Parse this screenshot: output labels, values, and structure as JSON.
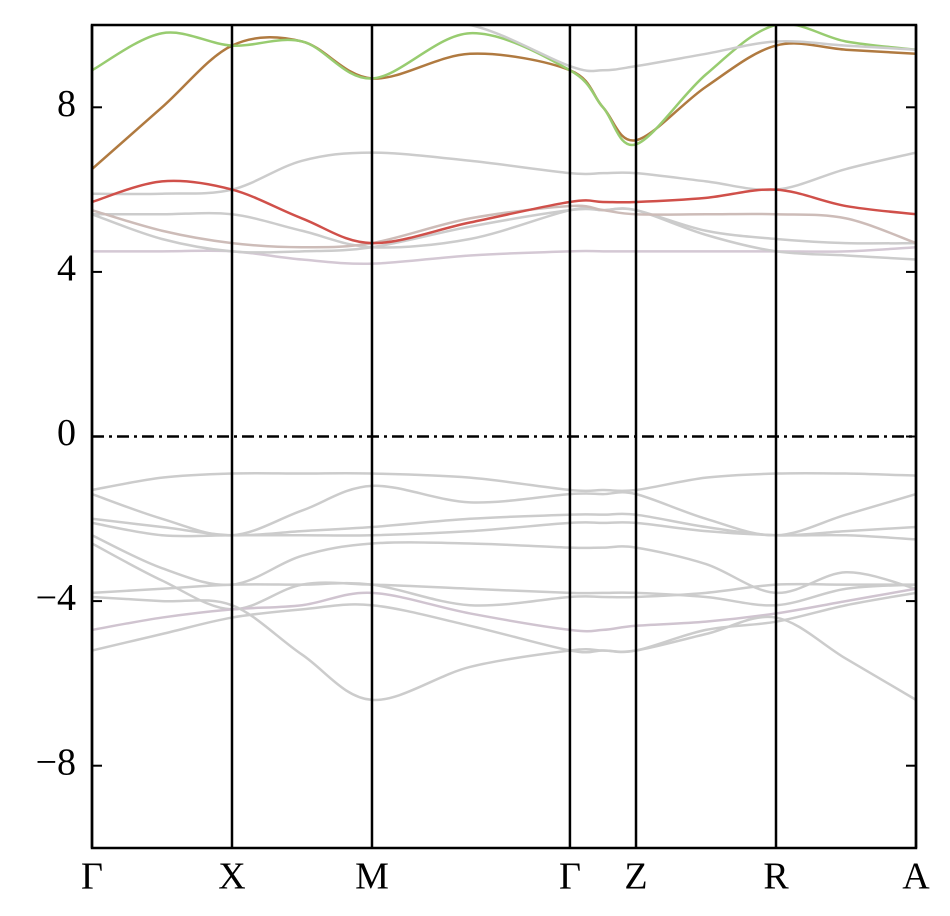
{
  "chart_data": {
    "type": "line",
    "smooth": true,
    "x": [
      0,
      0.5,
      1,
      1.5,
      2,
      2.7,
      3.414,
      3.65,
      3.886,
      4.386,
      4.886,
      5.386,
      5.886
    ],
    "xlim": [
      0,
      5.886
    ],
    "xticks": [
      {
        "value": 0,
        "label": "Γ"
      },
      {
        "value": 1,
        "label": "X"
      },
      {
        "value": 2,
        "label": "M"
      },
      {
        "value": 3.414,
        "label": "Γ"
      },
      {
        "value": 3.886,
        "label": "Z"
      },
      {
        "value": 4.886,
        "label": "R"
      },
      {
        "value": 5.886,
        "label": "A"
      }
    ],
    "ylim": [
      -10,
      10
    ],
    "yticks": [
      {
        "value": -8,
        "label": "−8"
      },
      {
        "value": -4,
        "label": "−4"
      },
      0,
      4,
      8
    ],
    "grid": "x",
    "reference_line": 0,
    "series": [
      {
        "color": "#cccccc",
        "values": [
          -1.3,
          -1.0,
          -0.9,
          -0.9,
          -0.9,
          -1.0,
          -1.3,
          -1.3,
          -1.3,
          -1.0,
          -0.9,
          -0.9,
          -0.95
        ]
      },
      {
        "color": "#cccccc",
        "values": [
          -1.4,
          -2.0,
          -2.4,
          -1.8,
          -1.2,
          -1.6,
          -1.4,
          -1.4,
          -1.4,
          -2.0,
          -2.4,
          -1.9,
          -1.4
        ]
      },
      {
        "color": "#cccccc",
        "values": [
          -2.0,
          -2.2,
          -2.4,
          -2.3,
          -2.2,
          -2.0,
          -1.9,
          -1.9,
          -1.9,
          -2.2,
          -2.4,
          -2.3,
          -2.2
        ]
      },
      {
        "color": "#cccccc",
        "values": [
          -2.1,
          -2.4,
          -2.4,
          -2.4,
          -2.4,
          -2.3,
          -2.1,
          -2.1,
          -2.1,
          -2.3,
          -2.4,
          -2.4,
          -2.5
        ]
      },
      {
        "color": "#cccccc",
        "values": [
          -2.4,
          -3.2,
          -3.6,
          -2.9,
          -2.6,
          -2.6,
          -2.7,
          -2.7,
          -2.7,
          -3.1,
          -3.8,
          -3.3,
          -3.7
        ]
      },
      {
        "color": "#cccccc",
        "values": [
          -2.6,
          -3.5,
          -4.2,
          -3.6,
          -3.6,
          -3.7,
          -3.8,
          -3.8,
          -3.8,
          -3.9,
          -4.1,
          -3.7,
          -3.6
        ]
      },
      {
        "color": "#cccccc",
        "values": [
          -3.8,
          -3.7,
          -3.6,
          -3.6,
          -3.6,
          -4.1,
          -3.9,
          -3.9,
          -3.9,
          -3.8,
          -3.6,
          -3.6,
          -3.6
        ]
      },
      {
        "color": "#d0c4d0",
        "values": [
          -4.7,
          -4.4,
          -4.2,
          -4.1,
          -3.8,
          -4.3,
          -4.7,
          -4.7,
          -4.6,
          -4.5,
          -4.3,
          -4.0,
          -3.7
        ]
      },
      {
        "color": "#cccccc",
        "values": [
          -3.9,
          -4.0,
          -4.1,
          -5.3,
          -6.4,
          -5.6,
          -5.2,
          -5.2,
          -5.2,
          -4.8,
          -4.4,
          -5.4,
          -6.4
        ]
      },
      {
        "color": "#cccccc",
        "values": [
          -5.2,
          -4.8,
          -4.4,
          -4.2,
          -4.1,
          -4.6,
          -5.2,
          -5.2,
          -5.2,
          -4.7,
          -4.5,
          -4.1,
          -3.8
        ]
      },
      {
        "color": "#d4c8d4",
        "values": [
          4.5,
          4.5,
          4.5,
          4.3,
          4.2,
          4.4,
          4.5,
          4.5,
          4.5,
          4.5,
          4.5,
          4.5,
          4.6
        ]
      },
      {
        "color": "#cccccc",
        "values": [
          5.4,
          4.8,
          4.5,
          4.5,
          4.6,
          5.1,
          5.5,
          5.5,
          5.5,
          4.9,
          4.5,
          4.4,
          4.3
        ]
      },
      {
        "color": "#cccccc",
        "values": [
          5.4,
          5.4,
          5.4,
          5.0,
          4.6,
          4.8,
          5.5,
          5.5,
          5.5,
          5.0,
          4.8,
          4.7,
          4.7
        ]
      },
      {
        "color": "#cdbcb8",
        "values": [
          5.5,
          5.0,
          4.7,
          4.6,
          4.7,
          5.3,
          5.6,
          5.5,
          5.4,
          5.4,
          5.4,
          5.3,
          4.7
        ]
      },
      {
        "color": "#cccccc",
        "values": [
          5.9,
          5.9,
          6.0,
          6.7,
          6.9,
          6.7,
          6.4,
          6.4,
          6.4,
          6.2,
          6.0,
          6.5,
          6.9
        ]
      },
      {
        "color": "#d0504a",
        "values": [
          5.7,
          6.2,
          6.0,
          5.3,
          4.7,
          5.2,
          5.7,
          5.7,
          5.7,
          5.8,
          6.0,
          5.6,
          5.4
        ]
      },
      {
        "color": "#b07a40",
        "values": [
          6.5,
          8.0,
          9.5,
          9.6,
          8.7,
          9.3,
          8.9,
          8.0,
          7.2,
          8.5,
          9.5,
          9.4,
          9.3
        ]
      },
      {
        "color": "#98cc70",
        "values": [
          8.9,
          9.8,
          9.5,
          9.6,
          8.7,
          9.8,
          8.9,
          8.0,
          7.1,
          8.8,
          10,
          9.6,
          9.4
        ]
      },
      {
        "color": "#cccccc",
        "values": [
          10,
          10,
          10,
          10,
          10,
          10,
          9.0,
          8.9,
          9.0,
          9.3,
          9.6,
          9.5,
          9.4
        ]
      }
    ]
  }
}
